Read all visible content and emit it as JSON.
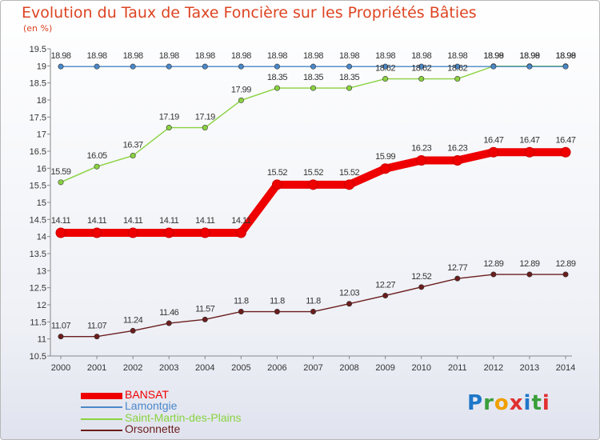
{
  "title": "Evolution du Taux de Taxe Foncière sur les Propriétés Bâties",
  "subtitle": "(en %)",
  "logo": {
    "text": "Proxiti",
    "colors": [
      "#1f77c9",
      "#3a9e3a",
      "#f0a000",
      "#e03030",
      "#1f77c9",
      "#3a9e3a",
      "#e03030"
    ]
  },
  "chart_data": {
    "type": "line",
    "title": "Evolution du Taux de Taxe Foncière sur les Propriétés Bâties",
    "ylabel": "(en %)",
    "xlabel": "",
    "x": [
      "2000",
      "2001",
      "2002",
      "2003",
      "2004",
      "2005",
      "2006",
      "2007",
      "2008",
      "2009",
      "2010",
      "2011",
      "2012",
      "2013",
      "2014"
    ],
    "ylim": [
      10.5,
      19.5
    ],
    "yticks": [
      "10.5",
      "11",
      "11.5",
      "12",
      "12.5",
      "13",
      "13.5",
      "14",
      "14.5",
      "15",
      "15.5",
      "16",
      "16.5",
      "17",
      "17.5",
      "18",
      "18.5",
      "19",
      "19.5"
    ],
    "grid": false,
    "legend_position": "bottom-left",
    "series": [
      {
        "name": "BANSAT",
        "color": "#ee0000",
        "weight": "thick",
        "values": [
          14.11,
          14.11,
          14.11,
          14.11,
          14.11,
          14.11,
          15.52,
          15.52,
          15.52,
          15.99,
          16.23,
          16.23,
          16.47,
          16.47,
          16.47
        ],
        "labels": [
          "14.11",
          "14.11",
          "14.11",
          "14.11",
          "14.11",
          "14.11",
          "15.52",
          "15.52",
          "15.52",
          "15.99",
          "16.23",
          "16.23",
          "16.47",
          "16.47",
          "16.47"
        ]
      },
      {
        "name": "Lamontgie",
        "color": "#4a88c8",
        "weight": "thin",
        "values": [
          18.98,
          18.98,
          18.98,
          18.98,
          18.98,
          18.98,
          18.98,
          18.98,
          18.98,
          18.98,
          18.98,
          18.98,
          18.98,
          18.98,
          18.98
        ],
        "labels": [
          "18.98",
          "18.98",
          "18.98",
          "18.98",
          "18.98",
          "18.98",
          "18.98",
          "18.98",
          "18.98",
          "18.98",
          "18.98",
          "18.98",
          "18.98",
          "18.98",
          "18.98"
        ]
      },
      {
        "name": "Saint-Martin-des-Plains",
        "color": "#8ad240",
        "weight": "medium",
        "values": [
          15.59,
          16.05,
          16.37,
          17.19,
          17.19,
          17.99,
          18.35,
          18.35,
          18.35,
          18.62,
          18.62,
          18.62,
          18.99,
          18.99,
          18.99
        ],
        "labels": [
          "15.59",
          "16.05",
          "16.37",
          "17.19",
          "17.19",
          "17.99",
          "18.35",
          "18.35",
          "18.35",
          "18.62",
          "18.62",
          "18.62",
          "18.99",
          "18.99",
          "18.99"
        ]
      },
      {
        "name": "Orsonnette",
        "color": "#6b1d1d",
        "weight": "medium",
        "values": [
          11.07,
          11.07,
          11.24,
          11.46,
          11.57,
          11.8,
          11.8,
          11.8,
          12.03,
          12.27,
          12.52,
          12.77,
          12.89,
          12.89,
          12.89
        ],
        "labels": [
          "11.07",
          "11.07",
          "11.24",
          "11.46",
          "11.57",
          "11.8",
          "11.8",
          "11.8",
          "12.03",
          "12.27",
          "12.52",
          "12.77",
          "12.89",
          "12.89",
          "12.89"
        ]
      }
    ]
  }
}
